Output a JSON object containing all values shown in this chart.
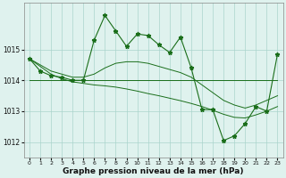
{
  "title": "Graphe pression niveau de la mer (hPa)",
  "x": [
    0,
    1,
    2,
    3,
    4,
    5,
    6,
    7,
    8,
    9,
    10,
    11,
    12,
    13,
    14,
    15,
    16,
    17,
    18,
    19,
    20,
    21,
    22,
    23
  ],
  "y_main": [
    1014.7,
    1014.3,
    1014.15,
    1014.1,
    1014.0,
    1014.0,
    1015.3,
    1016.1,
    1015.6,
    1015.1,
    1015.5,
    1015.45,
    1015.15,
    1014.9,
    1015.4,
    1014.4,
    1013.05,
    1013.05,
    1012.05,
    1012.2,
    1012.6,
    1013.15,
    1013.0,
    1014.85
  ],
  "y_smooth_upper": [
    1014.7,
    1014.5,
    1014.3,
    1014.2,
    1014.1,
    1014.1,
    1014.2,
    1014.4,
    1014.55,
    1014.6,
    1014.6,
    1014.55,
    1014.45,
    1014.35,
    1014.25,
    1014.1,
    1013.85,
    1013.6,
    1013.35,
    1013.2,
    1013.1,
    1013.2,
    1013.35,
    1013.5
  ],
  "y_smooth_lower": [
    1014.7,
    1014.45,
    1014.2,
    1014.05,
    1013.95,
    1013.9,
    1013.85,
    1013.82,
    1013.78,
    1013.72,
    1013.65,
    1013.57,
    1013.5,
    1013.42,
    1013.34,
    1013.25,
    1013.15,
    1013.03,
    1012.9,
    1012.8,
    1012.78,
    1012.88,
    1013.0,
    1013.15
  ],
  "y_flat": [
    1014.0,
    1014.0,
    1014.0,
    1014.0,
    1014.0,
    1014.0,
    1014.0,
    1014.0,
    1014.0,
    1014.0,
    1014.0,
    1014.0,
    1014.0,
    1014.0,
    1014.0,
    1014.0,
    1014.0,
    1014.0,
    1014.0,
    1014.0,
    1014.0,
    1014.0,
    1014.0,
    1014.0
  ],
  "line_color": "#1a6e1a",
  "bg_color": "#dff2ee",
  "grid_color": "#aad4cc",
  "ylim": [
    1011.5,
    1016.5
  ],
  "yticks": [
    1012,
    1013,
    1014,
    1015
  ],
  "xticks": [
    0,
    1,
    2,
    3,
    4,
    5,
    6,
    7,
    8,
    9,
    10,
    11,
    12,
    13,
    14,
    15,
    16,
    17,
    18,
    19,
    20,
    21,
    22,
    23
  ]
}
